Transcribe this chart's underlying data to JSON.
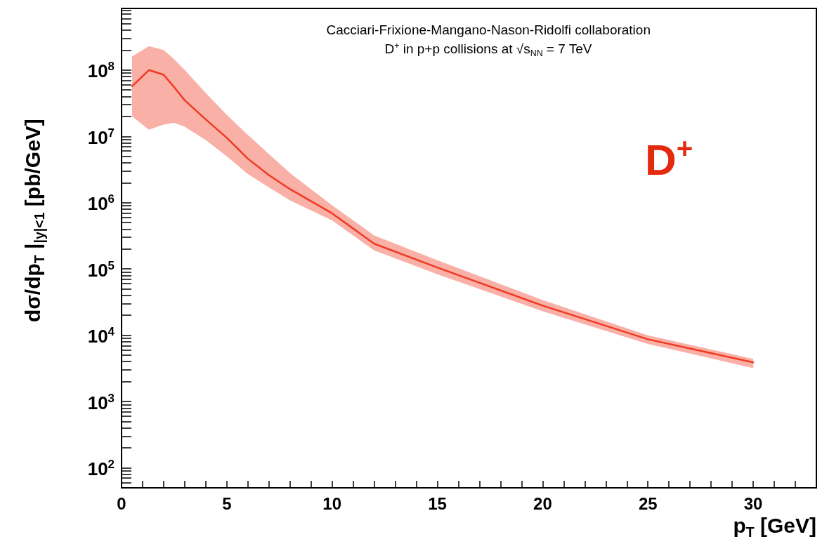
{
  "chart_data": {
    "type": "line",
    "xlabel": "p$_{T}$  [GeV]",
    "ylabel": "dσ/dp$_{T}$ |$_{|y|<1}$   [pb/GeV]",
    "annotations": [
      "Cacciari-Frixione-Mangano-Nason-Ridolfi collaboration",
      "D$^{+}$ in p+p collisions at √s$_{NN}$ = 7 TeV",
      "D$^{+}$"
    ],
    "x": [
      0.5,
      1.3,
      2,
      2.5,
      3,
      4,
      5,
      6,
      7,
      8,
      10,
      12,
      15,
      20,
      25,
      30
    ],
    "series": [
      {
        "color": "#f03a22",
        "values": [
          57000000,
          100000000,
          85000000,
          55000000,
          35000000,
          18000000,
          9500000,
          4600000,
          2600000,
          1600000,
          690000,
          240000,
          105000,
          28000,
          8700,
          3900
        ],
        "lower": [
          20000000,
          12600000,
          15000000,
          16000000,
          14000000,
          8800000,
          5000000,
          2700000,
          1700000,
          1080000,
          540000,
          190000,
          83000,
          23000,
          7400,
          3200
        ],
        "upper": [
          160000000,
          230000000,
          200000000,
          145000000,
          100000000,
          45000000,
          21000000,
          10500000,
          5400000,
          2800000,
          910000,
          320000,
          135000,
          34000,
          10000,
          4400
        ]
      }
    ],
    "log": "y",
    "xlim": [
      0,
      33
    ],
    "xticks": [
      0,
      {
        "value": 1,
        "label": null
      },
      {
        "value": 2,
        "label": null
      },
      {
        "value": 3,
        "label": null
      },
      {
        "value": 4,
        "label": null
      },
      5,
      {
        "value": 6,
        "label": null
      },
      {
        "value": 7,
        "label": null
      },
      {
        "value": 8,
        "label": null
      },
      {
        "value": 9,
        "label": null
      },
      10,
      {
        "value": 11,
        "label": null
      },
      {
        "value": 12,
        "label": null
      },
      {
        "value": 13,
        "label": null
      },
      {
        "value": 14,
        "label": null
      },
      15,
      {
        "value": 16,
        "label": null
      },
      {
        "value": 17,
        "label": null
      },
      {
        "value": 18,
        "label": null
      },
      {
        "value": 19,
        "label": null
      },
      20,
      {
        "value": 21,
        "label": null
      },
      {
        "value": 22,
        "label": null
      },
      {
        "value": 23,
        "label": null
      },
      {
        "value": 24,
        "label": null
      },
      25,
      {
        "value": 26,
        "label": null
      },
      {
        "value": 27,
        "label": null
      },
      {
        "value": 28,
        "label": null
      },
      {
        "value": 29,
        "label": null
      },
      30,
      {
        "value": 31,
        "label": null
      },
      {
        "value": 32,
        "label": null
      },
      {
        "value": 33,
        "label": null
      }
    ],
    "ylim": [
      50,
      850000000
    ],
    "yticks": [
      {
        "value": 50,
        "label": null
      },
      {
        "value": 60,
        "label": null
      },
      {
        "value": 70,
        "label": null
      },
      {
        "value": 80,
        "label": null
      },
      {
        "value": 90,
        "label": null
      },
      {
        "value": 100,
        "label": "10$^{2}$"
      },
      {
        "value": 200,
        "label": null
      },
      {
        "value": 300,
        "label": null
      },
      {
        "value": 400,
        "label": null
      },
      {
        "value": 500,
        "label": null
      },
      {
        "value": 600,
        "label": null
      },
      {
        "value": 700,
        "label": null
      },
      {
        "value": 800,
        "label": null
      },
      {
        "value": 900,
        "label": null
      },
      {
        "value": 1000,
        "label": "10$^{3}$"
      },
      {
        "value": 2000,
        "label": null
      },
      {
        "value": 3000,
        "label": null
      },
      {
        "value": 4000,
        "label": null
      },
      {
        "value": 5000,
        "label": null
      },
      {
        "value": 6000,
        "label": null
      },
      {
        "value": 7000,
        "label": null
      },
      {
        "value": 8000,
        "label": null
      },
      {
        "value": 9000,
        "label": null
      },
      {
        "value": 10000,
        "label": "10$^{4}$"
      },
      {
        "value": 20000,
        "label": null
      },
      {
        "value": 30000,
        "label": null
      },
      {
        "value": 40000,
        "label": null
      },
      {
        "value": 50000,
        "label": null
      },
      {
        "value": 60000,
        "label": null
      },
      {
        "value": 70000,
        "label": null
      },
      {
        "value": 80000,
        "label": null
      },
      {
        "value": 90000,
        "label": null
      },
      {
        "value": 100000,
        "label": "10$^{5}$"
      },
      {
        "value": 200000,
        "label": null
      },
      {
        "value": 300000,
        "label": null
      },
      {
        "value": 400000,
        "label": null
      },
      {
        "value": 500000,
        "label": null
      },
      {
        "value": 600000,
        "label": null
      },
      {
        "value": 700000,
        "label": null
      },
      {
        "value": 800000,
        "label": null
      },
      {
        "value": 900000,
        "label": null
      },
      {
        "value": 1000000,
        "label": "10$^{6}$"
      },
      {
        "value": 2000000,
        "label": null
      },
      {
        "value": 3000000,
        "label": null
      },
      {
        "value": 4000000,
        "label": null
      },
      {
        "value": 5000000,
        "label": null
      },
      {
        "value": 6000000,
        "label": null
      },
      {
        "value": 7000000,
        "label": null
      },
      {
        "value": 8000000,
        "label": null
      },
      {
        "value": 9000000,
        "label": null
      },
      {
        "value": 10000000,
        "label": "10$^{7}$"
      },
      {
        "value": 20000000,
        "label": null
      },
      {
        "value": 30000000,
        "label": null
      },
      {
        "value": 40000000,
        "label": null
      },
      {
        "value": 50000000,
        "label": null
      },
      {
        "value": 60000000,
        "label": null
      },
      {
        "value": 70000000,
        "label": null
      },
      {
        "value": 80000000,
        "label": null
      },
      {
        "value": 90000000,
        "label": null
      },
      {
        "value": 100000000,
        "label": "10$^{8}$"
      },
      {
        "value": 200000000,
        "label": null
      },
      {
        "value": 300000000,
        "label": null
      },
      {
        "value": 400000000,
        "label": null
      },
      {
        "value": 500000000,
        "label": null
      },
      {
        "value": 600000000,
        "label": null
      },
      {
        "value": 700000000,
        "label": null
      },
      {
        "value": 800000000,
        "label": null
      }
    ],
    "grid": false,
    "marker": "none",
    "line_style": "solid"
  }
}
